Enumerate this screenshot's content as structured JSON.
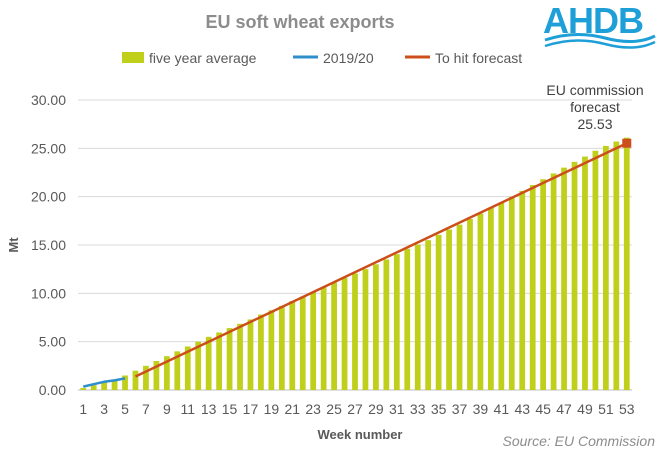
{
  "chart_data": {
    "type": "bar",
    "title": "EU soft wheat exports",
    "xlabel": "Week number",
    "ylabel": "Mt",
    "ylim": [
      0,
      30
    ],
    "yticks": [
      "0.00",
      "5.00",
      "10.00",
      "15.00",
      "20.00",
      "25.00",
      "30.00"
    ],
    "xticks": [
      "1",
      "3",
      "5",
      "7",
      "9",
      "11",
      "13",
      "15",
      "17",
      "19",
      "21",
      "23",
      "25",
      "27",
      "29",
      "31",
      "33",
      "35",
      "37",
      "39",
      "41",
      "43",
      "45",
      "47",
      "49",
      "51",
      "53"
    ],
    "grid": true,
    "legend_position": "top",
    "series": [
      {
        "name": "five year average",
        "kind": "bar",
        "color": "#bfcf1a",
        "x": [
          1,
          2,
          3,
          4,
          5,
          6,
          7,
          8,
          9,
          10,
          11,
          12,
          13,
          14,
          15,
          16,
          17,
          18,
          19,
          20,
          21,
          22,
          23,
          24,
          25,
          26,
          27,
          28,
          29,
          30,
          31,
          32,
          33,
          34,
          35,
          36,
          37,
          38,
          39,
          40,
          41,
          42,
          43,
          44,
          45,
          46,
          47,
          48,
          49,
          50,
          51,
          52,
          53
        ],
        "values": [
          0.2,
          0.5,
          0.8,
          1.1,
          1.5,
          2.0,
          2.5,
          3.0,
          3.5,
          4.0,
          4.5,
          5.0,
          5.5,
          5.95,
          6.4,
          6.85,
          7.3,
          7.8,
          8.25,
          8.7,
          9.2,
          9.65,
          10.1,
          10.6,
          11.1,
          11.6,
          12.05,
          12.5,
          13.0,
          13.5,
          14.05,
          14.6,
          15.05,
          15.5,
          16.05,
          16.6,
          17.1,
          17.7,
          18.25,
          18.85,
          19.4,
          20.0,
          20.6,
          21.2,
          21.8,
          22.4,
          23.0,
          23.6,
          24.15,
          24.75,
          25.25,
          25.7,
          26.1
        ]
      },
      {
        "name": "2019/20",
        "kind": "line",
        "color": "#2e8fcc",
        "x": [
          1,
          2,
          3,
          4,
          5
        ],
        "values": [
          0.35,
          0.6,
          0.85,
          1.0,
          1.2
        ]
      },
      {
        "name": "To hit forecast",
        "kind": "line",
        "color": "#cc4e1a",
        "x": [
          6,
          53
        ],
        "values": [
          1.4,
          25.53
        ]
      }
    ],
    "annotation": {
      "lines": [
        "EU commission",
        "forecast",
        "25.53"
      ],
      "x": 53,
      "y": 25.53
    }
  },
  "logo": {
    "text": "AHDB"
  },
  "source": "Source: EU Commission",
  "colors": {
    "grid": "#d9d9d9",
    "axis": "#bfbfbf",
    "marker": "#cc4e1a"
  }
}
